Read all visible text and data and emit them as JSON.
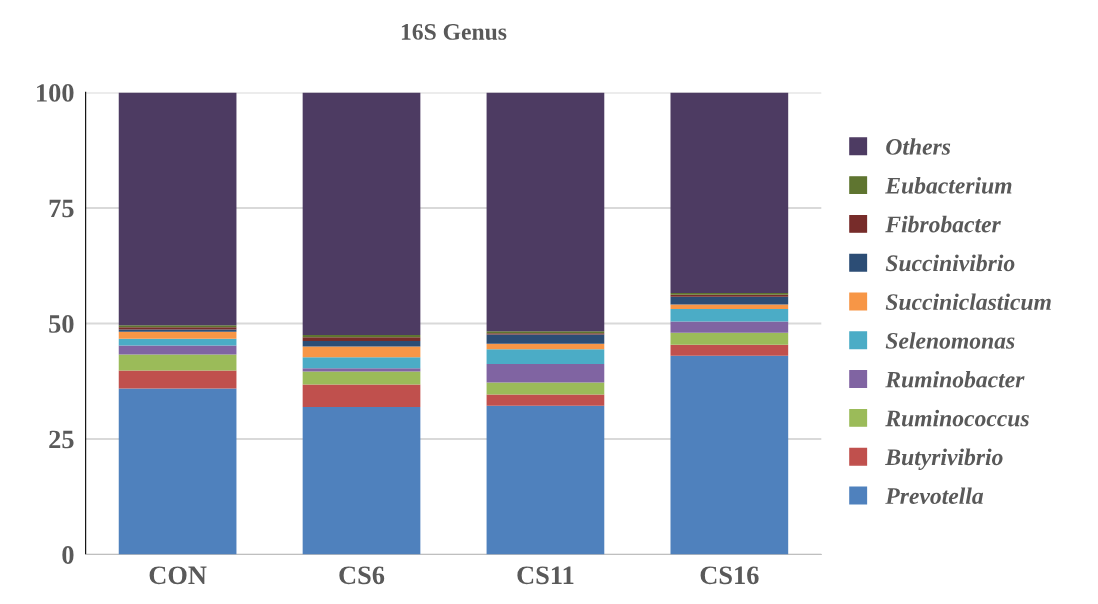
{
  "chart_data": {
    "type": "bar",
    "title": "16S Genus",
    "stacked": true,
    "categories": [
      "CON",
      "CS6",
      "CS11",
      "CS16"
    ],
    "series": [
      {
        "name": "Prevotella",
        "color": "#4f81bd",
        "values": [
          35.9,
          31.9,
          32.2,
          43.0
        ]
      },
      {
        "name": "Butyrivibrio",
        "color": "#c0504d",
        "values": [
          3.9,
          4.9,
          2.4,
          2.4
        ]
      },
      {
        "name": "Ruminococcus",
        "color": "#9bbb59",
        "values": [
          3.5,
          2.8,
          2.6,
          2.6
        ]
      },
      {
        "name": "Ruminobacter",
        "color": "#8064a2",
        "values": [
          1.9,
          0.7,
          4.0,
          2.4
        ]
      },
      {
        "name": "Selenomonas",
        "color": "#4bacc6",
        "values": [
          1.5,
          2.4,
          3.2,
          2.7
        ]
      },
      {
        "name": "Succiniclasticum",
        "color": "#f79646",
        "values": [
          1.5,
          2.3,
          1.2,
          1.0
        ]
      },
      {
        "name": "Succinivibrio",
        "color": "#2c4d75",
        "values": [
          0.5,
          1.2,
          2.0,
          1.7
        ]
      },
      {
        "name": "Fibrobacter",
        "color": "#772c2a",
        "values": [
          0.5,
          0.8,
          0.3,
          0.4
        ]
      },
      {
        "name": "Eubacterium",
        "color": "#5f7530",
        "values": [
          0.4,
          0.5,
          0.4,
          0.4
        ]
      },
      {
        "name": "Others",
        "color": "#4d3b62",
        "values": [
          50.4,
          52.5,
          51.7,
          43.4
        ]
      }
    ],
    "ylim": [
      0,
      100
    ],
    "yticks": [
      0,
      25,
      50,
      75,
      100
    ],
    "grid": "y",
    "legend": "right"
  }
}
